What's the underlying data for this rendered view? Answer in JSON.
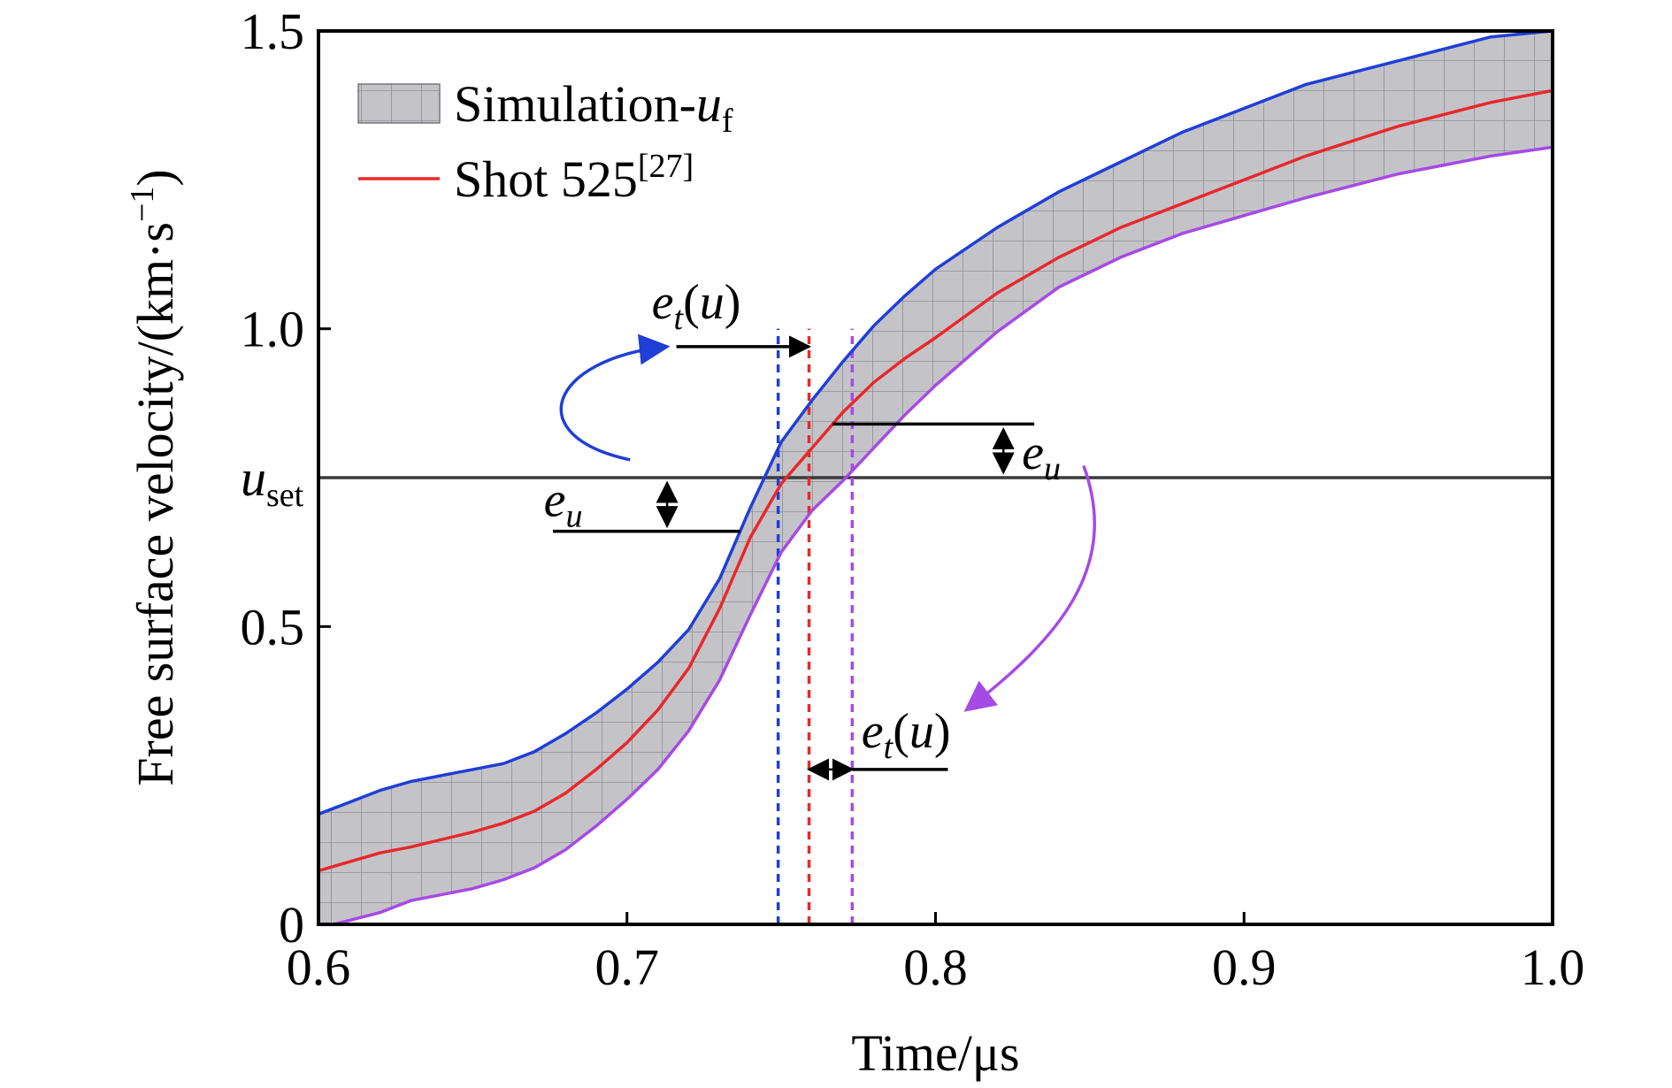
{
  "chart_data": {
    "type": "line",
    "xlabel": "Time/μs",
    "ylabel": "Free surface velocity/(km·s",
    "ylabel_unit_superscript": "−1",
    "ylabel_close": ")",
    "xlim": [
      0.6,
      1.0
    ],
    "ylim": [
      0,
      1.5
    ],
    "xticks": [
      "0.6",
      "0.7",
      "0.8",
      "0.9",
      "1.0"
    ],
    "yticks": [
      "0",
      "0.5",
      "1.0",
      "1.5"
    ],
    "grid": false,
    "legend_position": "top-left",
    "legend": {
      "band_label": "Simulation-",
      "band_label_var": "u",
      "band_label_sub": "f",
      "line_label": "Shot 525",
      "line_label_sup": "[27]"
    },
    "colors": {
      "upper": "#1f3fd6",
      "center": "#e8282a",
      "lower": "#a64ae6",
      "band_fill": "#c4c4c8",
      "hline": "#3a3a3a"
    },
    "series": [
      {
        "name": "Shot 525",
        "x": [
          0.6,
          0.62,
          0.63,
          0.65,
          0.66,
          0.67,
          0.68,
          0.69,
          0.7,
          0.71,
          0.72,
          0.73,
          0.74,
          0.75,
          0.76,
          0.77,
          0.78,
          0.79,
          0.8,
          0.82,
          0.84,
          0.86,
          0.88,
          0.9,
          0.92,
          0.95,
          0.98,
          1.0
        ],
        "y": [
          0.09,
          0.12,
          0.13,
          0.155,
          0.17,
          0.19,
          0.22,
          0.26,
          0.305,
          0.36,
          0.43,
          0.53,
          0.65,
          0.74,
          0.8,
          0.86,
          0.91,
          0.95,
          0.985,
          1.06,
          1.12,
          1.17,
          1.21,
          1.25,
          1.29,
          1.34,
          1.38,
          1.4
        ]
      }
    ],
    "band": {
      "upper": {
        "x": [
          0.6,
          0.62,
          0.63,
          0.65,
          0.66,
          0.67,
          0.68,
          0.69,
          0.7,
          0.71,
          0.72,
          0.73,
          0.74,
          0.75,
          0.76,
          0.77,
          0.78,
          0.79,
          0.8,
          0.82,
          0.84,
          0.86,
          0.88,
          0.9,
          0.92,
          0.95,
          0.98,
          1.0
        ],
        "y": [
          0.185,
          0.225,
          0.24,
          0.26,
          0.27,
          0.29,
          0.32,
          0.355,
          0.395,
          0.44,
          0.495,
          0.58,
          0.7,
          0.81,
          0.88,
          0.945,
          1.005,
          1.055,
          1.1,
          1.17,
          1.23,
          1.28,
          1.33,
          1.37,
          1.41,
          1.45,
          1.49,
          1.5
        ]
      },
      "lower": {
        "x": [
          0.605,
          0.62,
          0.63,
          0.65,
          0.66,
          0.67,
          0.68,
          0.69,
          0.7,
          0.71,
          0.72,
          0.73,
          0.74,
          0.75,
          0.76,
          0.77,
          0.78,
          0.79,
          0.8,
          0.82,
          0.84,
          0.86,
          0.88,
          0.9,
          0.92,
          0.95,
          0.98,
          1.0
        ],
        "y": [
          0.0,
          0.02,
          0.04,
          0.06,
          0.075,
          0.095,
          0.125,
          0.165,
          0.21,
          0.26,
          0.325,
          0.41,
          0.52,
          0.625,
          0.695,
          0.745,
          0.8,
          0.855,
          0.905,
          0.995,
          1.07,
          1.12,
          1.16,
          1.19,
          1.22,
          1.26,
          1.29,
          1.305
        ]
      }
    },
    "reference_line": {
      "label": "u",
      "label_sub": "set",
      "y": 0.75
    },
    "vertical_lines": [
      {
        "x": 0.749,
        "color": "#1f3fd6"
      },
      {
        "x": 0.759,
        "color": "#e8282a"
      },
      {
        "x": 0.773,
        "color": "#a64ae6"
      }
    ],
    "annotations": {
      "e_u_label": "e",
      "e_u_sub": "u",
      "e_t_label": "e",
      "e_t_sub": "t",
      "e_t_arg": "(u)"
    }
  }
}
